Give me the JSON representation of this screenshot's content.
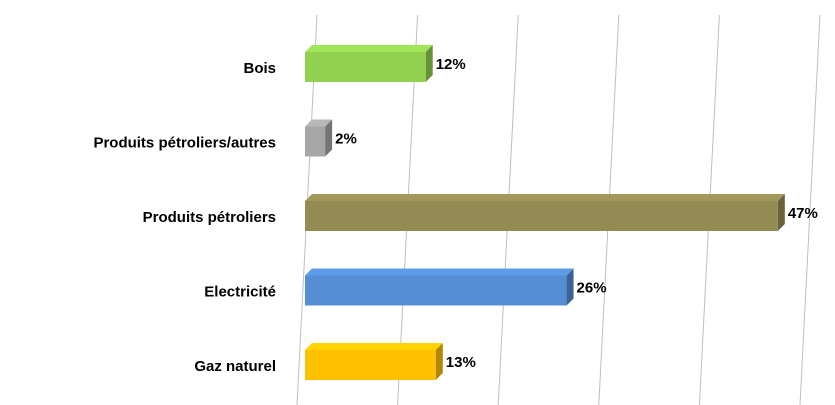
{
  "chart_data": {
    "type": "bar",
    "orientation": "horizontal",
    "categories": [
      "Bois",
      "Produits pétroliers/autres",
      "Produits pétroliers",
      "Electricité",
      "Gaz naturel"
    ],
    "values": [
      12,
      2,
      47,
      26,
      13
    ],
    "value_labels": [
      "12%",
      "2%",
      "47%",
      "26%",
      "13%"
    ],
    "colors": [
      "#92d050",
      "#a6a6a6",
      "#948a54",
      "#558ed5",
      "#ffc000"
    ],
    "xlim": [
      0,
      50
    ],
    "xticks": [
      0,
      10,
      20,
      30,
      40,
      50
    ],
    "grid": true
  }
}
